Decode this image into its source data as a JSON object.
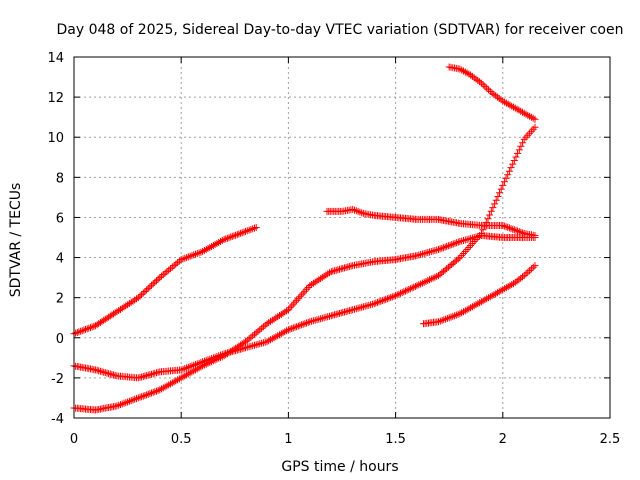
{
  "chart_data": {
    "type": "scatter",
    "title": "Day 048 of 2025, Sidereal Day-to-day VTEC variation (SDTVAR) for receiver coen",
    "xlabel": "GPS time / hours",
    "ylabel": "SDTVAR / TECUs",
    "xlim": [
      0,
      2.5
    ],
    "ylim": [
      -4,
      14
    ],
    "xticks": [
      0,
      0.5,
      1,
      1.5,
      2,
      2.5
    ],
    "xtick_labels": [
      "0",
      "0.5",
      "1",
      "1.5",
      "2",
      "2.5"
    ],
    "yticks": [
      -4,
      -2,
      0,
      2,
      4,
      6,
      8,
      10,
      12,
      14
    ],
    "ytick_labels": [
      "-4",
      "-2",
      "0",
      "2",
      "4",
      "6",
      "8",
      "10",
      "12",
      "14"
    ],
    "grid": true,
    "marker": "+",
    "color": "#ff0000",
    "series": [
      {
        "x": [
          0,
          0.1,
          0.2,
          0.3,
          0.4,
          0.5,
          0.6,
          0.7,
          0.8,
          0.85
        ],
        "y": [
          0.2,
          0.6,
          1.3,
          2.0,
          3.0,
          3.9,
          4.3,
          4.9,
          5.3,
          5.5
        ]
      },
      {
        "x": [
          0,
          0.1,
          0.2,
          0.3,
          0.4,
          0.5,
          0.6,
          0.7,
          0.8,
          0.9,
          1.0,
          1.1,
          1.2,
          1.3,
          1.4,
          1.5,
          1.6,
          1.7,
          1.8,
          1.9,
          2.0,
          2.1,
          2.15
        ],
        "y": [
          -1.4,
          -1.6,
          -1.9,
          -2.0,
          -1.7,
          -1.6,
          -1.2,
          -0.8,
          -0.5,
          -0.2,
          0.4,
          0.8,
          1.1,
          1.4,
          1.7,
          2.1,
          2.6,
          3.1,
          4.0,
          5.2,
          7.6,
          9.9,
          10.5
        ]
      },
      {
        "x": [
          0,
          0.1,
          0.2,
          0.3,
          0.4,
          0.5,
          0.6,
          0.7,
          0.8,
          0.9,
          1.0,
          1.1,
          1.2,
          1.3,
          1.4,
          1.5,
          1.6,
          1.7,
          1.8,
          1.9,
          2.0,
          2.1,
          2.15
        ],
        "y": [
          -3.5,
          -3.6,
          -3.4,
          -3.0,
          -2.6,
          -2.0,
          -1.4,
          -0.9,
          -0.2,
          0.7,
          1.4,
          2.6,
          3.3,
          3.6,
          3.8,
          3.9,
          4.1,
          4.4,
          4.8,
          5.1,
          5.0,
          5.0,
          5.0
        ]
      },
      {
        "x": [
          1.18,
          1.25,
          1.3,
          1.35,
          1.4,
          1.5,
          1.6,
          1.7,
          1.8,
          1.9,
          2.0,
          2.1,
          2.15
        ],
        "y": [
          6.3,
          6.3,
          6.4,
          6.2,
          6.1,
          6.0,
          5.9,
          5.9,
          5.7,
          5.6,
          5.6,
          5.2,
          5.1
        ]
      },
      {
        "x": [
          1.75,
          1.8,
          1.85,
          1.9,
          1.95,
          2.0,
          2.05,
          2.1,
          2.15
        ],
        "y": [
          13.5,
          13.4,
          13.1,
          12.7,
          12.2,
          11.8,
          11.5,
          11.2,
          10.9
        ]
      },
      {
        "x": [
          1.63,
          1.7,
          1.75,
          1.8,
          1.85,
          1.9,
          1.95,
          2.0,
          2.05,
          2.1,
          2.15
        ],
        "y": [
          0.7,
          0.8,
          1.0,
          1.2,
          1.5,
          1.8,
          2.1,
          2.4,
          2.7,
          3.1,
          3.6
        ]
      }
    ]
  }
}
